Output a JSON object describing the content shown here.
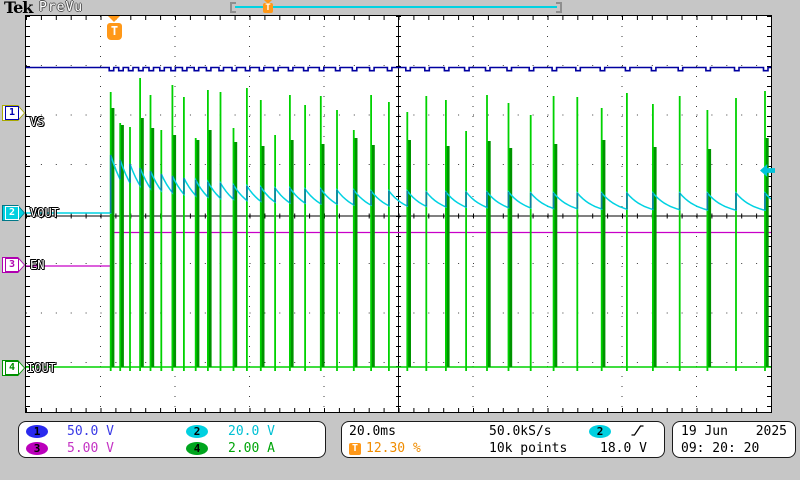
{
  "header": {
    "brand": "Tek",
    "mode": "PreVu"
  },
  "acq_bar": {
    "trigger_marker": "T",
    "trigger_position_pct": 12.3
  },
  "graticule": {
    "channel_labels": {
      "ch1": "VS",
      "ch2": "VOUT",
      "ch3": "EN",
      "ch4": "IOUT"
    },
    "trigger_flag": "T"
  },
  "markers": {
    "ch1": "1",
    "ch2": "2",
    "ch3": "3",
    "ch4": "4"
  },
  "readouts": {
    "ch1": {
      "badge": "1",
      "value": "50.0 V"
    },
    "ch2": {
      "badge": "2",
      "value": "20.0 V"
    },
    "ch3": {
      "badge": "3",
      "value": "5.00 V"
    },
    "ch4": {
      "badge": "4",
      "value": "2.00 A"
    },
    "timebase": "20.0ms",
    "sample_rate": "50.0kS/s",
    "record_length": "10k points",
    "trigger_marker": "T",
    "trigger_position": "12.30 %",
    "trigger_source_badge": "2",
    "trigger_level": "18.0 V",
    "date_left": "19 Jun",
    "date_right": "2025",
    "time": "09: 20: 20"
  },
  "colors": {
    "ch1": "#0000a0",
    "ch2": "#00d2e2",
    "ch2_dark": "#0e7f9f",
    "ch3": "#c800c8",
    "ch3_dark": "#500050",
    "ch4": "#00d200",
    "ch4_dark": "#009300",
    "grid": "#3a3a3a",
    "accent_orange": "#ff9818",
    "readout_ch1": "#3a3ae6",
    "readout_ch2": "#00c0d4",
    "readout_ch3": "#c433c4",
    "readout_ch4": "#00a50a"
  },
  "waveforms": {
    "ch1_y": 67.5,
    "ch1_notch": 3.2,
    "ch2_base": 213,
    "ch2_target": 214.5,
    "ch2_tau": 18,
    "ch3_low": 266,
    "ch3_high": 232.5,
    "ch3_step_x": 112.7,
    "ch4_base": 367,
    "spikes_x": [
      110.7,
      120.2,
      130,
      140.1,
      150.5,
      161.3,
      172.4,
      183.9,
      195.7,
      207.9,
      220.5,
      233.5,
      246.9,
      260.8,
      275.1,
      289.9,
      305.1,
      320.8,
      337,
      353.8,
      371.1,
      388.9,
      407.3,
      426.3,
      445.9,
      466.1,
      487,
      508.5,
      530.7,
      553.6,
      577.3,
      601.7,
      626.9,
      652.9,
      679.7,
      707.4,
      736,
      765
    ],
    "green_top": [
      92,
      123,
      127,
      78,
      95,
      130,
      85,
      97,
      138,
      90,
      92,
      128,
      88,
      100,
      135,
      95,
      105,
      96,
      110,
      130,
      95,
      102,
      112,
      96,
      100,
      131,
      95,
      103,
      115,
      96,
      97,
      108,
      93,
      104,
      96,
      110,
      98,
      91
    ],
    "green_dark_top": [
      108,
      125,
      null,
      118,
      128,
      null,
      135,
      null,
      140,
      130,
      null,
      142,
      null,
      146,
      null,
      140,
      null,
      144,
      null,
      138,
      145,
      null,
      140,
      null,
      146,
      null,
      141,
      148,
      null,
      144,
      null,
      140,
      null,
      147,
      null,
      149,
      null,
      138
    ],
    "cyan_peak": [
      155,
      160,
      164,
      168,
      171,
      174,
      176,
      178,
      180,
      182,
      183,
      185,
      186,
      187,
      188,
      188,
      189,
      189,
      190,
      190,
      191,
      191,
      191,
      192,
      192,
      192,
      192,
      192,
      193,
      193,
      193,
      193,
      193,
      193,
      193,
      193,
      193,
      193
    ]
  }
}
